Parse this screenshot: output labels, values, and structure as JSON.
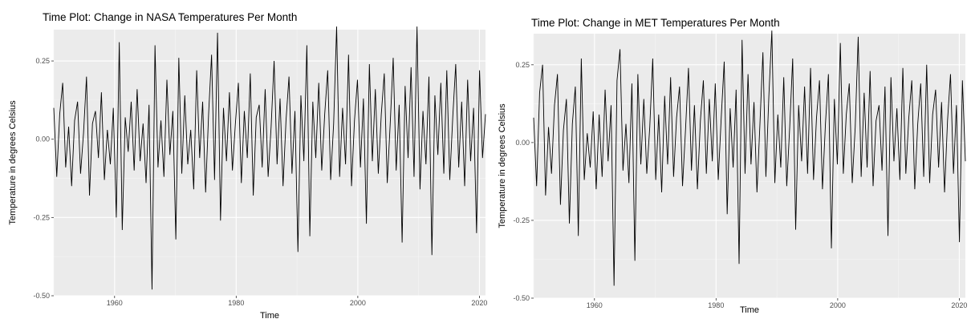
{
  "chart_data": [
    {
      "type": "line",
      "title": "Time Plot: Change in NASA Temperatures Per Month",
      "xlabel": "Time",
      "ylabel": "Temperature in degrees Celsius",
      "xlim": [
        1950,
        2021
      ],
      "ylim": [
        -0.5,
        0.35
      ],
      "x_ticks": [
        1960,
        1980,
        2000,
        2020
      ],
      "y_ticks": [
        -0.5,
        -0.25,
        0.0,
        0.25
      ],
      "y_tick_labels": [
        "-0.50",
        "-0.25",
        "0.00",
        "0.25"
      ],
      "grid": true,
      "series": [
        {
          "values": [
            0.1,
            -0.12,
            0.08,
            0.18,
            -0.09,
            0.04,
            -0.15,
            0.06,
            0.12,
            -0.11,
            0.02,
            0.2,
            -0.18,
            0.05,
            0.09,
            -0.06,
            0.15,
            -0.13,
            0.03,
            -0.08,
            0.1,
            -0.25,
            0.31,
            -0.29,
            0.07,
            -0.04,
            0.12,
            -0.1,
            0.16,
            -0.07,
            0.05,
            -0.14,
            0.11,
            -0.48,
            0.3,
            -0.09,
            0.06,
            -0.12,
            0.19,
            -0.05,
            0.09,
            -0.32,
            0.26,
            -0.11,
            0.14,
            -0.08,
            0.03,
            -0.16,
            0.22,
            -0.06,
            0.12,
            -0.17,
            0.08,
            0.27,
            -0.13,
            0.34,
            -0.26,
            0.1,
            -0.07,
            0.15,
            -0.1,
            0.05,
            0.18,
            -0.14,
            0.09,
            -0.06,
            0.21,
            -0.18,
            0.07,
            0.11,
            -0.09,
            0.16,
            -0.12,
            0.04,
            0.25,
            -0.08,
            0.13,
            -0.15,
            0.06,
            0.2,
            -0.11,
            0.09,
            -0.36,
            0.14,
            -0.07,
            0.3,
            -0.31,
            0.12,
            -0.06,
            0.18,
            -0.1,
            0.08,
            0.22,
            -0.13,
            0.05,
            0.36,
            -0.12,
            0.1,
            -0.08,
            0.27,
            -0.15,
            0.06,
            0.19,
            -0.09,
            0.13,
            -0.27,
            0.24,
            -0.07,
            0.16,
            -0.11,
            0.08,
            0.21,
            -0.14,
            0.05,
            0.26,
            -0.1,
            0.11,
            -0.33,
            0.17,
            -0.06,
            0.23,
            -0.12,
            0.36,
            -0.16,
            0.09,
            -0.08,
            0.2,
            -0.37,
            0.14,
            -0.05,
            0.18,
            -0.11,
            0.22,
            -0.13,
            0.07,
            0.24,
            -0.09,
            0.12,
            -0.15,
            0.19,
            -0.07,
            0.1,
            -0.3,
            0.22,
            -0.06,
            0.08
          ],
          "color": "#000000"
        }
      ]
    },
    {
      "type": "line",
      "title": "Time Plot: Change in MET Temperatures Per Month",
      "xlabel": "Time",
      "ylabel": "Temperature in degrees Celsius",
      "xlim": [
        1950,
        2021
      ],
      "ylim": [
        -0.5,
        0.35
      ],
      "x_ticks": [
        1960,
        1980,
        2000,
        2020
      ],
      "y_ticks": [
        -0.5,
        -0.25,
        0.0,
        0.25
      ],
      "y_tick_labels": [
        "-0.50",
        "-0.25",
        "0.00",
        "0.25"
      ],
      "grid": true,
      "series": [
        {
          "values": [
            0.08,
            -0.14,
            0.16,
            0.25,
            -0.17,
            0.05,
            -0.1,
            0.12,
            0.22,
            -0.2,
            0.04,
            0.14,
            -0.26,
            0.06,
            0.18,
            -0.3,
            0.27,
            -0.12,
            0.03,
            -0.08,
            0.1,
            -0.15,
            0.09,
            -0.11,
            0.17,
            -0.06,
            0.12,
            -0.46,
            0.2,
            0.3,
            -0.09,
            0.06,
            -0.13,
            0.19,
            -0.38,
            0.22,
            -0.07,
            0.14,
            -0.1,
            0.05,
            0.27,
            -0.12,
            0.09,
            -0.16,
            0.15,
            -0.07,
            0.21,
            -0.11,
            0.08,
            0.18,
            -0.14,
            0.04,
            0.24,
            -0.09,
            0.12,
            -0.15,
            0.07,
            0.2,
            -0.1,
            0.14,
            -0.06,
            0.19,
            -0.12,
            0.08,
            0.26,
            -0.23,
            0.11,
            -0.08,
            0.17,
            -0.39,
            0.33,
            -0.1,
            0.22,
            -0.07,
            0.13,
            -0.16,
            0.06,
            0.29,
            -0.11,
            0.15,
            0.36,
            -0.13,
            0.09,
            -0.08,
            0.21,
            -0.14,
            0.05,
            0.27,
            -0.28,
            0.12,
            -0.06,
            0.18,
            -0.1,
            0.24,
            -0.12,
            0.08,
            0.2,
            -0.15,
            0.06,
            0.22,
            -0.34,
            0.14,
            -0.07,
            0.32,
            -0.1,
            0.09,
            0.19,
            -0.13,
            0.05,
            0.34,
            -0.11,
            0.16,
            -0.08,
            0.23,
            -0.14,
            0.07,
            0.12,
            -0.09,
            0.18,
            -0.3,
            0.21,
            -0.06,
            0.11,
            -0.12,
            0.24,
            -0.1,
            0.08,
            0.2,
            -0.15,
            0.06,
            0.19,
            -0.11,
            0.25,
            -0.13,
            0.09,
            0.17,
            -0.08,
            0.13,
            -0.16,
            0.07,
            0.22,
            -0.1,
            0.12,
            -0.32,
            0.2,
            -0.06
          ],
          "color": "#000000"
        }
      ]
    }
  ]
}
